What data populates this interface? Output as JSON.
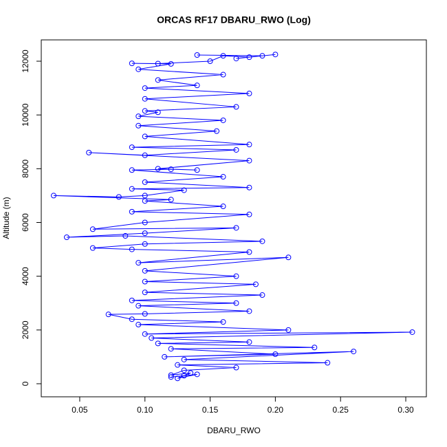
{
  "chart_data": {
    "type": "line",
    "title": "ORCAS RF17 DBARU_RWO (Log)",
    "x_label": "DBARU_RWO",
    "y_label": "Altitude (m)",
    "color": "#0000ff",
    "markers": true,
    "x": [
      0.13,
      0.12,
      0.14,
      0.125,
      0.135,
      0.12,
      0.13,
      0.17,
      0.125,
      0.24,
      0.13,
      0.26,
      0.115,
      0.2,
      0.12,
      0.23,
      0.11,
      0.18,
      0.105,
      0.305,
      0.1,
      0.21,
      0.095,
      0.16,
      0.09,
      0.072,
      0.1,
      0.18,
      0.095,
      0.17,
      0.09,
      0.19,
      0.1,
      0.185,
      0.1,
      0.17,
      0.1,
      0.21,
      0.095,
      0.18,
      0.09,
      0.06,
      0.1,
      0.19,
      0.085,
      0.04,
      0.1,
      0.17,
      0.06,
      0.1,
      0.18,
      0.09,
      0.16,
      0.1,
      0.12,
      0.03,
      0.08,
      0.1,
      0.13,
      0.09,
      0.18,
      0.1,
      0.16,
      0.09,
      0.12,
      0.14,
      0.11,
      0.18,
      0.057,
      0.1,
      0.17,
      0.09,
      0.18,
      0.1,
      0.155,
      0.095,
      0.16,
      0.095,
      0.11,
      0.1,
      0.17,
      0.1,
      0.18,
      0.1,
      0.14,
      0.11,
      0.16,
      0.095,
      0.12,
      0.09,
      0.11,
      0.15,
      0.16,
      0.18,
      0.2,
      0.17,
      0.19,
      0.14
    ],
    "y": [
      300,
      250,
      350,
      200,
      400,
      320,
      500,
      600,
      700,
      780,
      900,
      1200,
      1000,
      1100,
      1300,
      1350,
      1500,
      1550,
      1700,
      1920,
      1850,
      2000,
      2200,
      2300,
      2400,
      2580,
      2600,
      2700,
      2900,
      3000,
      3100,
      3300,
      3400,
      3700,
      3800,
      4000,
      4200,
      4700,
      4500,
      4900,
      5000,
      5050,
      5200,
      5300,
      5500,
      5450,
      5600,
      5800,
      5750,
      6000,
      6300,
      6400,
      6600,
      6800,
      6850,
      7000,
      6950,
      7000,
      7200,
      7250,
      7300,
      7500,
      7700,
      7950,
      7980,
      7950,
      8000,
      8300,
      8600,
      8500,
      8700,
      8800,
      8900,
      9200,
      9400,
      9600,
      9800,
      9950,
      10100,
      10150,
      10300,
      10600,
      10800,
      11000,
      11100,
      11300,
      11500,
      11700,
      11900,
      11920,
      11910,
      12000,
      12200,
      12150,
      12250,
      12100,
      12200,
      12230
    ],
    "xlim": [
      0.0205,
      0.3158
    ],
    "ylim": [
      -486,
      12793
    ],
    "xticks": [
      0.05,
      {
        "value": 0.1,
        "label": "0.10"
      },
      0.15,
      {
        "value": 0.2,
        "label": "0.20"
      },
      0.25,
      {
        "value": 0.3,
        "label": "0.30"
      }
    ],
    "yticks": [
      0,
      2000,
      4000,
      6000,
      8000,
      10000,
      12000
    ]
  }
}
